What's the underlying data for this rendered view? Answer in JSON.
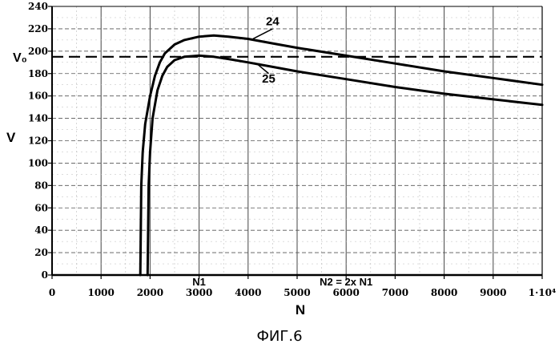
{
  "chart_data": {
    "type": "line",
    "title": "",
    "xlabel": "N",
    "ylabel": "V",
    "xlim": [
      0,
      10000
    ],
    "ylim": [
      0,
      240
    ],
    "x_ticks": [
      {
        "value": 0,
        "label": "0"
      },
      {
        "value": 1000,
        "label": "1000"
      },
      {
        "value": 2000,
        "label": "2000"
      },
      {
        "value": 3000,
        "label": "3000"
      },
      {
        "value": 4000,
        "label": "4000"
      },
      {
        "value": 5000,
        "label": "5000"
      },
      {
        "value": 6000,
        "label": "6000"
      },
      {
        "value": 7000,
        "label": "7000"
      },
      {
        "value": 8000,
        "label": "8000"
      },
      {
        "value": 9000,
        "label": "9000"
      },
      {
        "value": 10000,
        "label": "1·10⁴"
      }
    ],
    "y_ticks": [
      {
        "value": 0,
        "label": "0"
      },
      {
        "value": 20,
        "label": "20"
      },
      {
        "value": 40,
        "label": "40"
      },
      {
        "value": 60,
        "label": "60"
      },
      {
        "value": 80,
        "label": "80"
      },
      {
        "value": 100,
        "label": "100"
      },
      {
        "value": 120,
        "label": "120"
      },
      {
        "value": 140,
        "label": "140"
      },
      {
        "value": 160,
        "label": "160"
      },
      {
        "value": 180,
        "label": "180"
      },
      {
        "value": 200,
        "label": "200"
      },
      {
        "value": 220,
        "label": "220"
      },
      {
        "value": 240,
        "label": "240"
      }
    ],
    "series": [
      {
        "name": "24",
        "x": [
          1800,
          1820,
          1850,
          1900,
          2000,
          2100,
          2200,
          2300,
          2500,
          2700,
          3000,
          3300,
          3600,
          4000,
          4500,
          5000,
          6000,
          7000,
          8000,
          9000,
          10000
        ],
        "y": [
          0,
          80,
          110,
          135,
          160,
          178,
          190,
          198,
          206,
          210,
          213,
          214,
          213,
          211,
          207,
          203,
          196,
          189,
          182,
          176,
          170
        ]
      },
      {
        "name": "25",
        "x": [
          1950,
          1970,
          2000,
          2050,
          2150,
          2250,
          2350,
          2500,
          2700,
          3000,
          3300,
          3600,
          4000,
          4500,
          5000,
          6000,
          7000,
          8000,
          9000,
          10000
        ],
        "y": [
          0,
          80,
          110,
          140,
          165,
          178,
          186,
          192,
          195,
          196,
          195,
          193,
          190,
          186,
          182,
          175,
          168,
          162,
          157,
          152
        ]
      }
    ],
    "reference_line": {
      "label": "V₀",
      "value": 195
    },
    "annotations": [
      {
        "text": "24",
        "x": 4500,
        "y": 223
      },
      {
        "text": "25",
        "x": 4420,
        "y": 172
      },
      {
        "text": "N1",
        "x": 3000
      },
      {
        "text": "N2 = 2x N1",
        "x": 6000
      }
    ],
    "caption": "ФИГ.6"
  }
}
